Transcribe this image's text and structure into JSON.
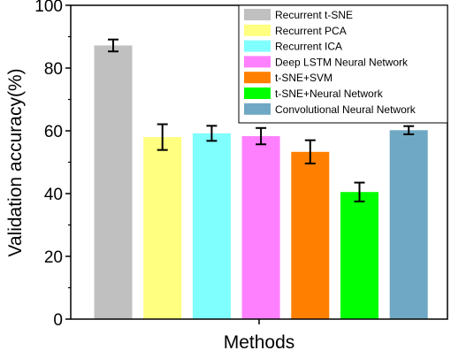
{
  "chart_data": {
    "type": "bar",
    "title": "",
    "xlabel": "Methods",
    "ylabel": "Validation accuracy(%)",
    "ylim": [
      0,
      100
    ],
    "yticks": [
      "0",
      "20",
      "40",
      "60",
      "80",
      "100"
    ],
    "grid": false,
    "legend_position": "top-right",
    "categories": [
      "Recurrent t-SNE",
      "Recurrent PCA",
      "Recurrent ICA",
      "Deep LSTM Neural Network",
      "t-SNE+SVM",
      "t-SNE+Neural Network",
      "Convolutional Neural Network"
    ],
    "values": [
      87.2,
      58.0,
      59.2,
      58.3,
      53.3,
      40.5,
      60.2
    ],
    "errors": [
      1.9,
      4.1,
      2.4,
      2.6,
      3.7,
      3.0,
      1.3
    ],
    "colors": [
      "#c0c0c0",
      "#ffff80",
      "#80ffff",
      "#ff80ff",
      "#ff8000",
      "#00ff00",
      "#6fa8c4"
    ]
  }
}
